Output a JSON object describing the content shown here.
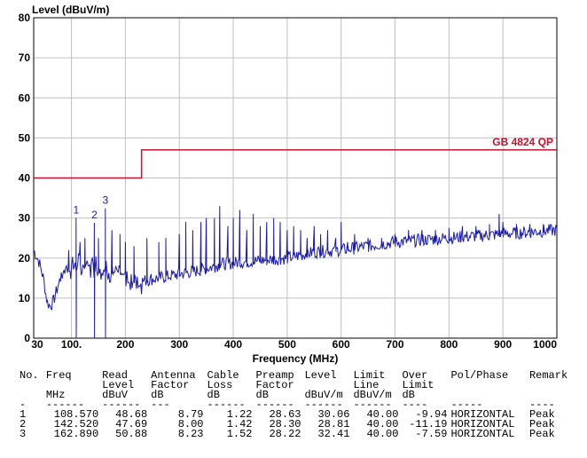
{
  "chart_data": {
    "type": "line",
    "ylabel": "Level (dBuV/m)",
    "xlabel": "Frequency (MHz)",
    "xlim": [
      30,
      1000
    ],
    "ylim": [
      0,
      80
    ],
    "x_ticks": [
      30,
      100,
      200,
      300,
      400,
      500,
      600,
      700,
      800,
      900,
      1000
    ],
    "x_tick_labels": [
      "30",
      "100.",
      "200",
      "300",
      "400",
      "500",
      "600",
      "700",
      "800",
      "900",
      "1000"
    ],
    "y_ticks": [
      0,
      10,
      20,
      30,
      40,
      50,
      60,
      70,
      80
    ],
    "y_tick_labels": [
      "0",
      "10",
      "20",
      "30",
      "40",
      "50",
      "60",
      "70",
      "80"
    ],
    "grid": true,
    "limit_line": {
      "name": "GB 4824 QP",
      "color": "#c8102e",
      "segments": [
        {
          "x": [
            30,
            230
          ],
          "y": 40
        },
        {
          "x": [
            230,
            1000
          ],
          "y": 47
        }
      ]
    },
    "series": [
      {
        "color": "#1a1aa6",
        "baseline": [
          [
            30,
            22
          ],
          [
            40,
            19
          ],
          [
            48,
            15
          ],
          [
            55,
            9
          ],
          [
            60,
            8
          ],
          [
            66,
            9
          ],
          [
            75,
            13
          ],
          [
            85,
            17
          ],
          [
            100,
            18
          ],
          [
            120,
            18
          ],
          [
            150,
            18
          ],
          [
            180,
            16
          ],
          [
            220,
            14
          ],
          [
            260,
            15
          ],
          [
            300,
            16
          ],
          [
            340,
            17
          ],
          [
            380,
            18.5
          ],
          [
            420,
            19
          ],
          [
            460,
            19.5
          ],
          [
            500,
            20
          ],
          [
            550,
            21.5
          ],
          [
            600,
            22
          ],
          [
            650,
            23
          ],
          [
            700,
            24
          ],
          [
            750,
            24.5
          ],
          [
            800,
            25
          ],
          [
            850,
            25.5
          ],
          [
            900,
            26
          ],
          [
            950,
            26.5
          ],
          [
            1000,
            27
          ]
        ],
        "spikes": [
          [
            95,
            22
          ],
          [
            108.57,
            30.06
          ],
          [
            116,
            24
          ],
          [
            125,
            25
          ],
          [
            142.52,
            28.81
          ],
          [
            150,
            25
          ],
          [
            162.89,
            32.41
          ],
          [
            175,
            27
          ],
          [
            190,
            26
          ],
          [
            200,
            24
          ],
          [
            216,
            23
          ],
          [
            240,
            25
          ],
          [
            262,
            24
          ],
          [
            275,
            25
          ],
          [
            300,
            26
          ],
          [
            312,
            29
          ],
          [
            325,
            27
          ],
          [
            340,
            29
          ],
          [
            350,
            30
          ],
          [
            365,
            30
          ],
          [
            375,
            33
          ],
          [
            390,
            28
          ],
          [
            400,
            30
          ],
          [
            412,
            32
          ],
          [
            425,
            27
          ],
          [
            437,
            31
          ],
          [
            450,
            28
          ],
          [
            462,
            29
          ],
          [
            475,
            30
          ],
          [
            487,
            29
          ],
          [
            500,
            27
          ],
          [
            512,
            28
          ],
          [
            525,
            27
          ],
          [
            537,
            25
          ],
          [
            550,
            28
          ],
          [
            562,
            26
          ],
          [
            575,
            27
          ],
          [
            590,
            25
          ],
          [
            600,
            29
          ],
          [
            612,
            24
          ],
          [
            625,
            26
          ],
          [
            650,
            25
          ],
          [
            675,
            25
          ],
          [
            700,
            26
          ],
          [
            725,
            27
          ],
          [
            750,
            27
          ],
          [
            775,
            27
          ],
          [
            800,
            27.5
          ],
          [
            825,
            28
          ],
          [
            850,
            28
          ],
          [
            875,
            28.5
          ],
          [
            893,
            31
          ],
          [
            900,
            29
          ],
          [
            925,
            28.5
          ],
          [
            950,
            28.5
          ],
          [
            975,
            28.5
          ]
        ],
        "dips": [
          [
            108.57,
            0
          ],
          [
            142.52,
            0
          ],
          [
            162.89,
            0
          ]
        ]
      }
    ],
    "markers": [
      {
        "label": "1",
        "x": 108.57,
        "y": 30.06
      },
      {
        "label": "2",
        "x": 142.52,
        "y": 28.81
      },
      {
        "label": "3",
        "x": 162.89,
        "y": 32.41
      }
    ]
  },
  "table": {
    "header_row1": [
      "No.",
      "Freq",
      "Read",
      "Antenna",
      "Cable",
      "Preamp",
      "Level",
      "Limit",
      "Over",
      "Pol/Phase",
      "Remark"
    ],
    "header_row2": [
      "",
      "",
      "Level",
      "Factor",
      "Loss",
      "Factor",
      "",
      "Line",
      "Limit",
      "",
      ""
    ],
    "header_row3": [
      "",
      "MHz",
      "dBuV",
      "dB",
      "dB",
      "dB",
      "dBuV/m",
      "dBuV/m",
      "dB",
      "",
      ""
    ],
    "separator": [
      "-",
      "------",
      "------",
      "---",
      "------",
      "------",
      "------",
      "------",
      "----",
      "-----",
      "----"
    ],
    "rows": [
      [
        "1",
        "108.570",
        "48.68",
        "8.79",
        "1.22",
        "28.63",
        "30.06",
        "40.00",
        "-9.94",
        "HORIZONTAL",
        "Peak"
      ],
      [
        "2",
        "142.520",
        "47.69",
        "8.00",
        "1.42",
        "28.30",
        "28.81",
        "40.00",
        "-11.19",
        "HORIZONTAL",
        "Peak"
      ],
      [
        "3",
        "162.890",
        "50.88",
        "8.23",
        "1.52",
        "28.22",
        "32.41",
        "40.00",
        "-7.59",
        "HORIZONTAL",
        "Peak"
      ]
    ]
  }
}
